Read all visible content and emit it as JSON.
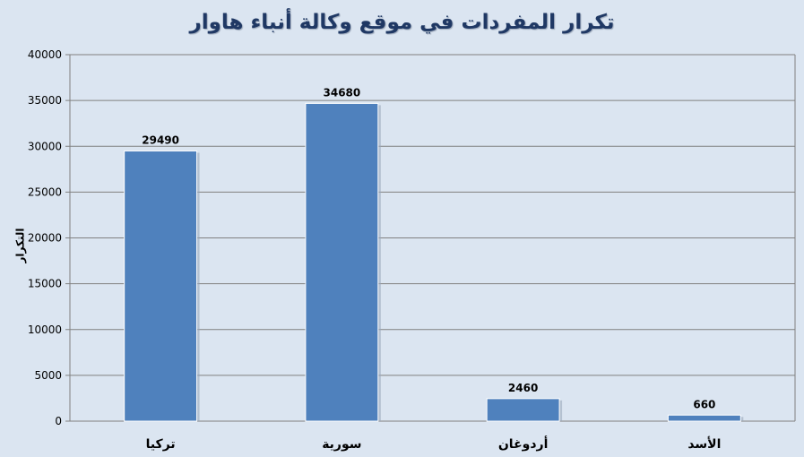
{
  "chart_data": {
    "type": "bar",
    "title": "تكرار المفردات في موقع وكالة أنباء هاوار",
    "xlabel": "",
    "ylabel": "التكرار",
    "categories": [
      "تركيا",
      "سورية",
      "أردوغان",
      "الأسد"
    ],
    "values": [
      29490,
      34680,
      2460,
      660
    ],
    "value_labels": [
      "29490",
      "34680",
      "2460",
      "660"
    ],
    "ylim": [
      0,
      40000
    ],
    "y_ticks": [
      0,
      5000,
      10000,
      15000,
      20000,
      25000,
      30000,
      35000,
      40000
    ],
    "y_tick_labels": [
      "0",
      "5000",
      "10000",
      "15000",
      "20000",
      "25000",
      "30000",
      "35000",
      "40000"
    ],
    "grid": true,
    "legend": "none",
    "colors": {
      "bar": "#4f81bd",
      "background": "#dbe5f1",
      "grid": "#808080",
      "title": "#1f3864"
    }
  }
}
